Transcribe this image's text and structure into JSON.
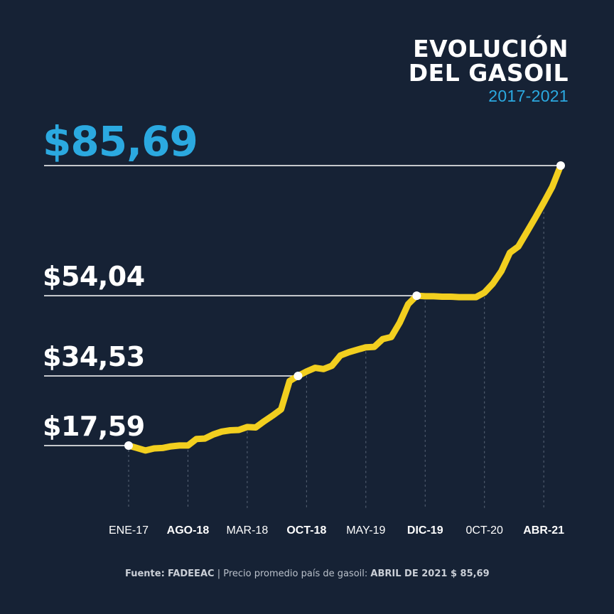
{
  "header": {
    "title_line1": "EVOLUCIÓN",
    "title_line2": "DEL GASOIL",
    "subtitle": "2017-2021"
  },
  "footer": {
    "source_label": "Fuente:",
    "source_name": "FADEEAC",
    "separator": "|",
    "description": "Precio promedio país de gasoil:",
    "highlight": "ABRIL DE 2021 $ 85,69"
  },
  "chart_data": {
    "type": "line",
    "title": "EVOLUCIÓN DEL GASOIL",
    "subtitle": "2017-2021",
    "xlabel": "",
    "ylabel": "",
    "grid": false,
    "tick_labels": [
      {
        "label": "ENE-17",
        "index": 0,
        "bold": false
      },
      {
        "label": "AGO-18",
        "index": 7,
        "bold": true
      },
      {
        "label": "MAR-18",
        "index": 14,
        "bold": false
      },
      {
        "label": "OCT-18",
        "index": 21,
        "bold": true
      },
      {
        "label": "MAY-19",
        "index": 28,
        "bold": false
      },
      {
        "label": "DIC-19",
        "index": 35,
        "bold": true
      },
      {
        "label": "0CT-20",
        "index": 42,
        "bold": false
      },
      {
        "label": "ABR-21",
        "index": 49,
        "bold": true
      }
    ],
    "series": [
      {
        "values": [
          17.59,
          17.0,
          16.4,
          16.9,
          17.0,
          17.4,
          17.6,
          17.6,
          19.2,
          19.3,
          20.3,
          21.0,
          21.3,
          21.4,
          22.1,
          22.0,
          23.5,
          24.9,
          26.4,
          33.3,
          34.53,
          35.6,
          36.5,
          36.2,
          37.0,
          39.5,
          40.3,
          40.9,
          41.5,
          41.6,
          43.5,
          44.0,
          47.5,
          52.0,
          54.04,
          53.9,
          53.9,
          53.8,
          53.8,
          53.7,
          53.7,
          53.7,
          54.8,
          57.0,
          60.0,
          64.5,
          66.0,
          69.5,
          73.0,
          76.7,
          80.5,
          85.69
        ]
      }
    ],
    "annotations": [
      {
        "label": "$17,59",
        "index": 0,
        "value": 17.59
      },
      {
        "label": "$34,53",
        "index": 20,
        "value": 34.53
      },
      {
        "label": "$54,04",
        "index": 34,
        "value": 54.04
      },
      {
        "label": "$85,69",
        "index": 51,
        "value": 85.69
      }
    ],
    "ylim": [
      0,
      100
    ]
  },
  "colors": {
    "background": "#162235",
    "line": "#f2cf1f",
    "accent": "#2ba9e0",
    "text": "#ffffff",
    "axis_text": "#ffffff",
    "guide": "#5a6678"
  }
}
